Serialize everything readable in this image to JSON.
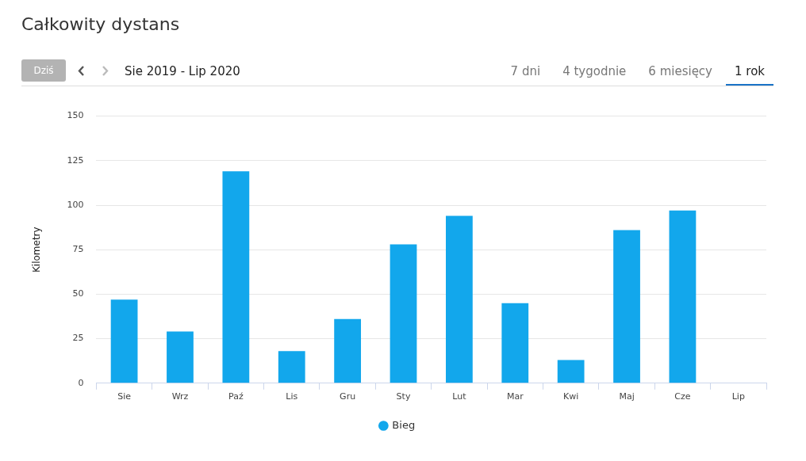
{
  "chart_data": {
    "type": "bar",
    "title": "Całkowity dystans",
    "subtitle": "Sie 2019 - Lip 2020",
    "ylabel": "Kilometry",
    "annotations": [
      "Dziś",
      "7 dni",
      "4 tygodnie",
      "6 miesięcy",
      "1 rok"
    ],
    "categories": [
      "Sie",
      "Wrz",
      "Paź",
      "Lis",
      "Gru",
      "Sty",
      "Lut",
      "Mar",
      "Kwi",
      "Maj",
      "Cze",
      "Lip"
    ],
    "series": [
      {
        "name": "Bieg",
        "color": "#12a7ec",
        "values": [
          47,
          29,
          119,
          18,
          36,
          78,
          94,
          45,
          13,
          86,
          97,
          0
        ]
      }
    ],
    "ylim": [
      0,
      150
    ],
    "yticks": [
      0,
      25,
      50,
      75,
      100,
      125,
      150
    ],
    "grid": "y",
    "legend": "bottom"
  }
}
